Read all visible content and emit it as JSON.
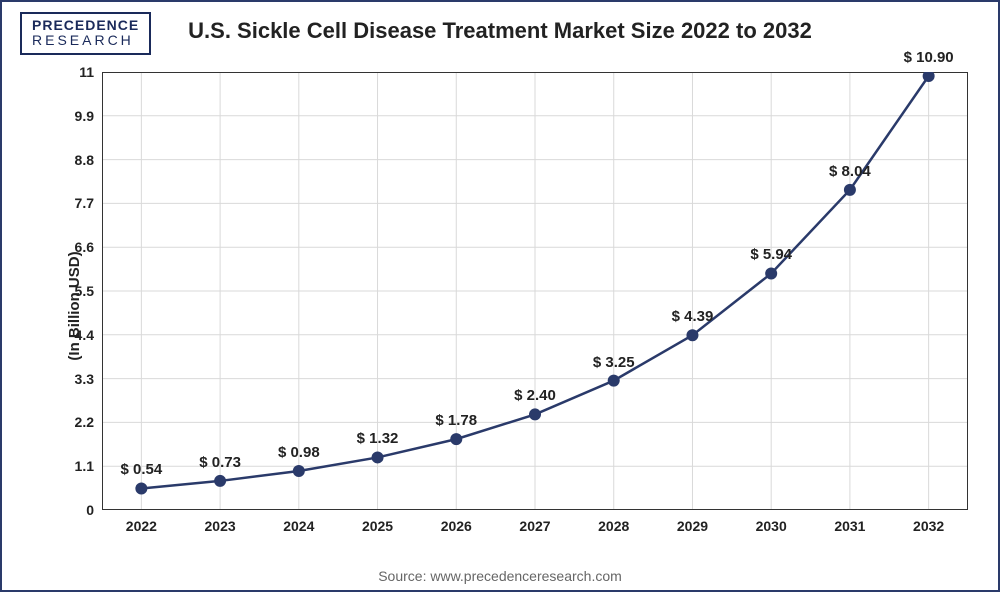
{
  "logo": {
    "line1": "PRECEDENCE",
    "line2": "RESEARCH"
  },
  "chart": {
    "type": "line",
    "title": "U.S. Sickle Cell Disease Treatment Market Size 2022 to 2032",
    "ylabel": "(In Billion USD)",
    "source": "Source: www.precedenceresearch.com",
    "background_color": "#ffffff",
    "border_color": "#2a3a6a",
    "grid_color": "#d9d9d9",
    "axis_color": "#333333",
    "line_color": "#2a3a6a",
    "line_width": 2.5,
    "marker_color": "#2a3a6a",
    "marker_radius": 6,
    "label_fontsize": 15,
    "tick_fontsize": 14,
    "title_fontsize": 22,
    "categories": [
      "2022",
      "2023",
      "2024",
      "2025",
      "2026",
      "2027",
      "2028",
      "2029",
      "2030",
      "2031",
      "2032"
    ],
    "values": [
      0.54,
      0.73,
      0.98,
      1.32,
      1.78,
      2.4,
      3.25,
      4.39,
      5.94,
      8.04,
      10.9
    ],
    "value_labels": [
      "$ 0.54",
      "$ 0.73",
      "$ 0.98",
      "$ 1.32",
      "$ 1.78",
      "$ 2.40",
      "$ 3.25",
      "$ 4.39",
      "$ 5.94",
      "$ 8.04",
      "$ 10.90"
    ],
    "ylim": [
      0,
      11
    ],
    "yticks": [
      0,
      1.1,
      2.2,
      3.3,
      4.4,
      5.5,
      6.6,
      7.7,
      8.8,
      9.9,
      11
    ],
    "ytick_labels": [
      "0",
      "1.1",
      "2.2",
      "3.3",
      "4.4",
      "5.5",
      "6.6",
      "7.7",
      "8.8",
      "9.9",
      "11"
    ]
  }
}
